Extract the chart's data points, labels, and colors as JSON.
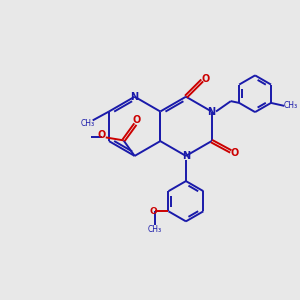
{
  "bg_color": "#e8e8e8",
  "bond_color": "#1a1aaa",
  "oxygen_color": "#cc0000",
  "nitrogen_color": "#1a1aaa",
  "line_width": 1.4,
  "figsize": [
    3.0,
    3.0
  ],
  "dpi": 100,
  "xlim": [
    0,
    10
  ],
  "ylim": [
    0,
    10
  ]
}
